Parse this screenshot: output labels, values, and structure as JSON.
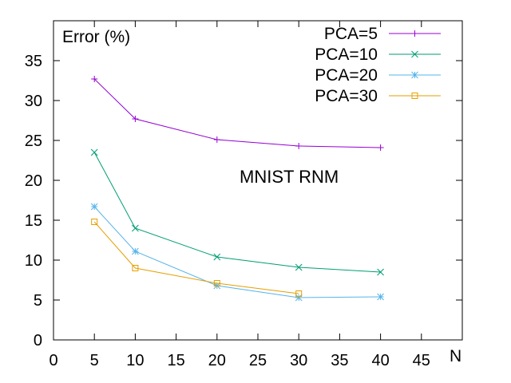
{
  "chart_data": {
    "type": "line",
    "ylabel": "Error (%)",
    "xlabel": "N",
    "annotation": "MNIST RNM",
    "xlim": [
      0,
      50
    ],
    "ylim": [
      0,
      40
    ],
    "xticks": [
      0,
      5,
      10,
      15,
      20,
      25,
      30,
      35,
      40,
      45
    ],
    "yticks": [
      0,
      5,
      10,
      15,
      20,
      25,
      30,
      35
    ],
    "grid": false,
    "legend_position": "top-right",
    "series": [
      {
        "name": "PCA=5",
        "color": "#9400d3",
        "marker": "plus",
        "x": [
          5,
          10,
          20,
          30,
          40
        ],
        "y": [
          32.7,
          27.7,
          25.1,
          24.3,
          24.1
        ]
      },
      {
        "name": "PCA=10",
        "color": "#009e73",
        "marker": "cross",
        "x": [
          5,
          10,
          20,
          30,
          40
        ],
        "y": [
          23.5,
          14.0,
          10.4,
          9.1,
          8.5
        ]
      },
      {
        "name": "PCA=20",
        "color": "#56b4e9",
        "marker": "star",
        "x": [
          5,
          10,
          20,
          30,
          40
        ],
        "y": [
          16.7,
          11.1,
          6.8,
          5.3,
          5.4
        ]
      },
      {
        "name": "PCA=30",
        "color": "#e69f00",
        "marker": "square-open",
        "x": [
          5,
          10,
          20,
          30
        ],
        "y": [
          14.8,
          9.0,
          7.1,
          5.8
        ]
      }
    ]
  }
}
